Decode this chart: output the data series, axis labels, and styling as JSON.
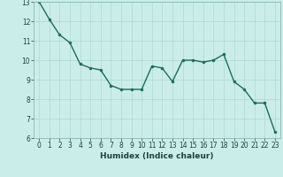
{
  "x": [
    0,
    1,
    2,
    3,
    4,
    5,
    6,
    7,
    8,
    9,
    10,
    11,
    12,
    13,
    14,
    15,
    16,
    17,
    18,
    19,
    20,
    21,
    22,
    23
  ],
  "y": [
    13.0,
    12.1,
    11.3,
    10.9,
    9.8,
    9.6,
    9.5,
    8.7,
    8.5,
    8.5,
    8.5,
    9.7,
    9.6,
    8.9,
    10.0,
    10.0,
    9.9,
    10.0,
    10.3,
    8.9,
    8.5,
    7.8,
    7.8,
    6.3
  ],
  "xlabel": "Humidex (Indice chaleur)",
  "ylim": [
    6,
    13
  ],
  "xlim_left": -0.5,
  "xlim_right": 23.5,
  "background_color": "#cbedea",
  "grid_color": "#acd8d4",
  "line_color": "#1e6b5b",
  "marker_color": "#1e6b5b",
  "tick_label_color": "#1e4040",
  "xlabel_color": "#1e4040",
  "yticks": [
    6,
    7,
    8,
    9,
    10,
    11,
    12,
    13
  ],
  "xticks": [
    0,
    1,
    2,
    3,
    4,
    5,
    6,
    7,
    8,
    9,
    10,
    11,
    12,
    13,
    14,
    15,
    16,
    17,
    18,
    19,
    20,
    21,
    22,
    23
  ],
  "tick_fontsize": 5.5,
  "xlabel_fontsize": 6.5,
  "ylabel_fontsize": 6.5,
  "line_width": 1.0,
  "marker_size": 2.0
}
